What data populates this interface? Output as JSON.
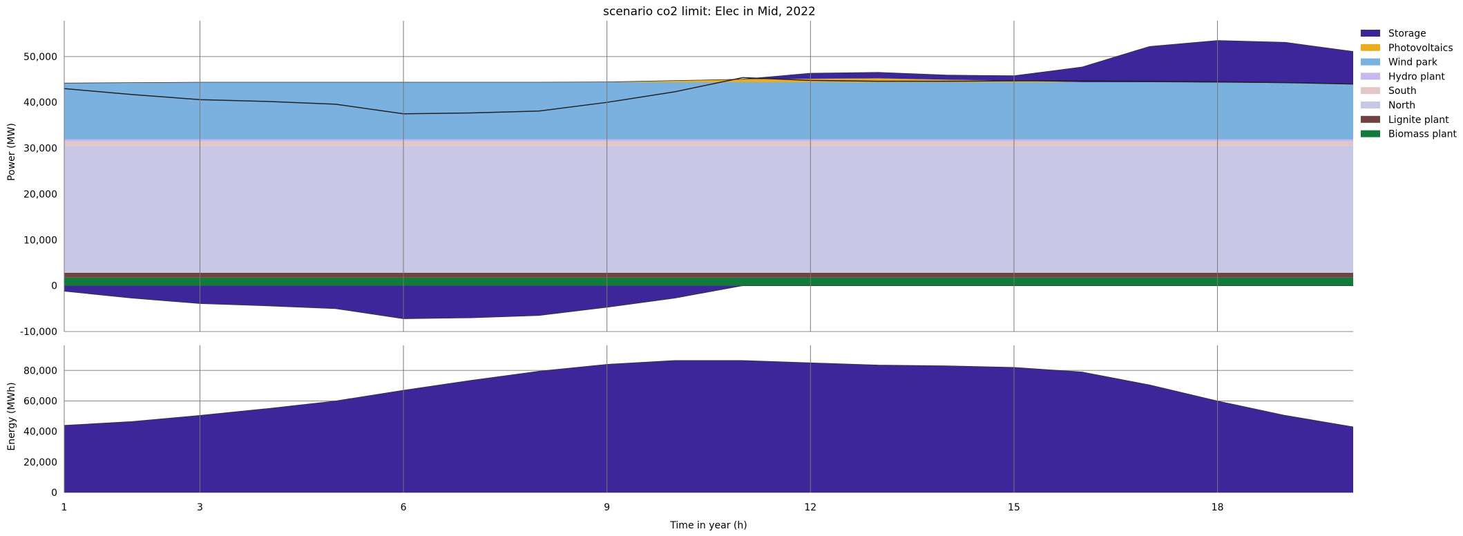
{
  "chart_data": [
    {
      "type": "area",
      "title": "scenario co2 limit: Elec in Mid, 2022",
      "xlabel": "",
      "ylabel": "Power (MW)",
      "xlim": [
        1,
        20
      ],
      "ylim": [
        -10000,
        56000
      ],
      "x_ticks": [
        1,
        3,
        6,
        9,
        12,
        15,
        18
      ],
      "y_ticks": [
        -10000,
        0,
        10000,
        20000,
        30000,
        40000,
        50000
      ],
      "y_tick_labels": [
        "-10,000",
        "0",
        "10,000",
        "20,000",
        "30,000",
        "40,000",
        "50,000"
      ],
      "grid": true,
      "legend_position": "right",
      "x": [
        1,
        2,
        3,
        4,
        5,
        6,
        7,
        8,
        9,
        10,
        11,
        12,
        13,
        14,
        15,
        16,
        17,
        18,
        19,
        20
      ],
      "series": [
        {
          "name": "Biomass plant",
          "color": "#127a3b",
          "values": [
            1800,
            1800,
            1800,
            1800,
            1800,
            1800,
            1800,
            1800,
            1800,
            1800,
            1800,
            1800,
            1800,
            1800,
            1800,
            1800,
            1800,
            1800,
            1800,
            1800
          ]
        },
        {
          "name": "Lignite plant",
          "color": "#714242",
          "values": [
            1000,
            1000,
            1000,
            1000,
            1000,
            1000,
            1000,
            1000,
            1000,
            1000,
            1000,
            1000,
            1000,
            1000,
            1000,
            1000,
            1000,
            1000,
            1000,
            1000
          ]
        },
        {
          "name": "North",
          "color": "#c8c8e6",
          "values": [
            27700,
            27700,
            27700,
            27700,
            27700,
            27700,
            27700,
            27700,
            27700,
            27700,
            27700,
            27700,
            27700,
            27700,
            27700,
            27700,
            27700,
            27700,
            27700,
            27700
          ]
        },
        {
          "name": "South",
          "color": "#e3c6c6",
          "values": [
            1000,
            1000,
            1000,
            1000,
            1000,
            1000,
            1000,
            1000,
            1000,
            1000,
            1000,
            1000,
            1000,
            1000,
            1000,
            1000,
            1000,
            1000,
            1000,
            1000
          ]
        },
        {
          "name": "Hydro plant",
          "color": "#c8b8ef",
          "values": [
            400,
            400,
            400,
            400,
            400,
            400,
            400,
            400,
            400,
            400,
            400,
            400,
            400,
            400,
            400,
            400,
            400,
            400,
            400,
            400
          ]
        },
        {
          "name": "Wind park",
          "color": "#7ab1df",
          "values": [
            12300,
            12400,
            12500,
            12500,
            12500,
            12500,
            12500,
            12500,
            12500,
            12500,
            12500,
            12500,
            12500,
            12500,
            12500,
            12500,
            12500,
            12400,
            12300,
            12200
          ]
        },
        {
          "name": "Photovoltaics",
          "color": "#e9ae1d",
          "values": [
            0,
            0,
            0,
            0,
            0,
            0,
            0,
            0,
            50,
            350,
            650,
            750,
            850,
            550,
            300,
            0,
            0,
            0,
            0,
            0
          ]
        },
        {
          "name": "Storage",
          "color": "#3d259a",
          "values": [
            0,
            0,
            0,
            0,
            0,
            0,
            0,
            0,
            0,
            0,
            0,
            1200,
            1300,
            1000,
            1100,
            3300,
            7800,
            9200,
            8900,
            7000
          ]
        },
        {
          "name": "Storage (charging)",
          "color": "#3d259a",
          "values": [
            -1200,
            -2700,
            -3900,
            -4400,
            -5000,
            -7200,
            -7000,
            -6500,
            -4700,
            -2700,
            0,
            0,
            0,
            0,
            0,
            0,
            0,
            0,
            0,
            0
          ]
        }
      ],
      "demand_line": {
        "name": "",
        "color": "#222222",
        "values": [
          43000,
          41700,
          40600,
          40200,
          39600,
          37500,
          37700,
          38100,
          40000,
          42300,
          45400,
          44800,
          44600,
          44600,
          44700,
          44700,
          44600,
          44500,
          44300,
          44000
        ]
      }
    },
    {
      "type": "area",
      "title": "",
      "xlabel": "Time in year (h)",
      "ylabel": "Energy (MWh)",
      "xlim": [
        1,
        20
      ],
      "ylim": [
        0,
        91000
      ],
      "x_ticks": [
        1,
        3,
        6,
        9,
        12,
        15,
        18
      ],
      "y_ticks": [
        0,
        20000,
        40000,
        60000,
        80000
      ],
      "y_tick_labels": [
        "0",
        "20,000",
        "40,000",
        "60,000",
        "80,000"
      ],
      "grid": true,
      "x": [
        1,
        2,
        3,
        4,
        5,
        6,
        7,
        8,
        9,
        10,
        11,
        12,
        13,
        14,
        15,
        16,
        17,
        18,
        19,
        20
      ],
      "series": [
        {
          "name": "Storage",
          "color": "#3d259a",
          "values": [
            44000,
            46500,
            50500,
            55000,
            60000,
            67000,
            73500,
            79500,
            84000,
            86500,
            86500,
            85000,
            83500,
            83000,
            82000,
            79000,
            70500,
            60000,
            50500,
            43000
          ]
        }
      ]
    }
  ],
  "legend": {
    "items": [
      {
        "label": "Storage",
        "color": "#3d259a"
      },
      {
        "label": "Photovoltaics",
        "color": "#e9ae1d"
      },
      {
        "label": "Wind park",
        "color": "#7ab1df"
      },
      {
        "label": "Hydro plant",
        "color": "#c8b8ef"
      },
      {
        "label": "South",
        "color": "#e3c6c6"
      },
      {
        "label": "North",
        "color": "#c8c8e6"
      },
      {
        "label": "Lignite plant",
        "color": "#714242"
      },
      {
        "label": "Biomass plant",
        "color": "#127a3b"
      }
    ]
  }
}
